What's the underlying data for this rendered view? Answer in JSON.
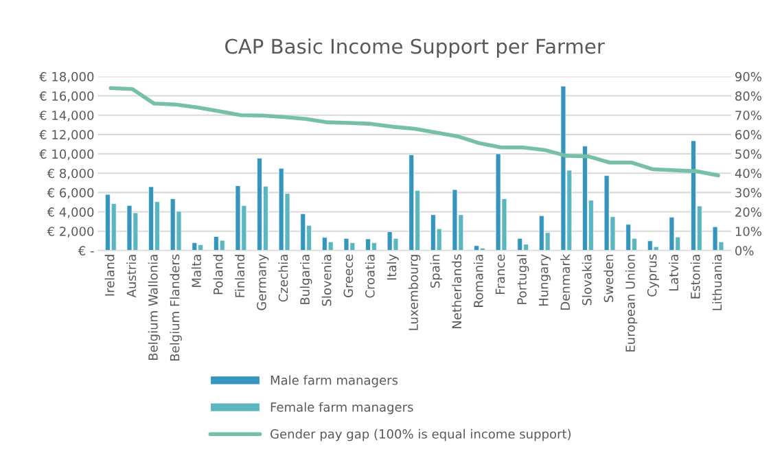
{
  "chart_data": {
    "type": "bar",
    "title": "CAP Basic Income Support per Farmer",
    "categories": [
      "Ireland",
      "Austria",
      "Belgium Wallonia",
      "Belgium Flanders",
      "Malta",
      "Poland",
      "Finland",
      "Germany",
      "Czechia",
      "Bulgaria",
      "Slovenia",
      "Greece",
      "Croatia",
      "Italy",
      "Luxembourg",
      "Spain",
      "Netherlands",
      "Romania",
      "France",
      "Portugal",
      "Hungary",
      "Denmark",
      "Slovakia",
      "Sweden",
      "European Union",
      "Cyprus",
      "Latvia",
      "Estonia",
      "Lithuania"
    ],
    "series": [
      {
        "name": "Male farm managers",
        "color": "#3595bd",
        "values": [
          5800,
          4650,
          6600,
          5350,
          800,
          1450,
          6700,
          9550,
          8500,
          3800,
          1350,
          1250,
          1200,
          1950,
          9900,
          3700,
          6300,
          500,
          10000,
          1250,
          3600,
          17000,
          10800,
          7750,
          2700,
          1000,
          3450,
          11350,
          2450
        ]
      },
      {
        "name": "Female farm managers",
        "color": "#5bb6c0",
        "values": [
          4850,
          3900,
          5050,
          4050,
          600,
          1050,
          4650,
          6650,
          5900,
          2600,
          900,
          800,
          800,
          1250,
          6200,
          2250,
          3700,
          250,
          5350,
          650,
          1850,
          8300,
          5200,
          3500,
          1250,
          400,
          1400,
          4600,
          900
        ]
      },
      {
        "name": "Gender pay gap (100% is equal income support)",
        "type": "line",
        "axis": "y2",
        "color": "#76c0a6",
        "values": [
          84,
          83.5,
          76,
          75.5,
          74,
          72,
          70,
          69.8,
          69,
          68,
          66.3,
          66,
          65.5,
          64,
          63,
          61,
          59,
          55.5,
          53.3,
          53.3,
          52,
          49,
          48.7,
          45.5,
          45.5,
          42,
          41.5,
          41,
          38.8
        ]
      }
    ],
    "ylim": [
      0,
      18000
    ],
    "yticks": [
      {
        "value": 0,
        "label": "€ -"
      },
      {
        "value": 2000,
        "label": "€ 2,000"
      },
      {
        "value": 4000,
        "label": "€ 4,000"
      },
      {
        "value": 6000,
        "label": "€ 6,000"
      },
      {
        "value": 8000,
        "label": "€ 8,000"
      },
      {
        "value": 10000,
        "label": "€ 10,000"
      },
      {
        "value": 12000,
        "label": "€ 12,000"
      },
      {
        "value": 14000,
        "label": "€ 14,000"
      },
      {
        "value": 16000,
        "label": "€ 16,000"
      },
      {
        "value": 18000,
        "label": "€ 18,000"
      }
    ],
    "y2lim": [
      0,
      90
    ],
    "y2ticks": [
      {
        "value": 0,
        "label": "0%"
      },
      {
        "value": 10,
        "label": "10%"
      },
      {
        "value": 20,
        "label": "20%"
      },
      {
        "value": 30,
        "label": "30%"
      },
      {
        "value": 40,
        "label": "40%"
      },
      {
        "value": 50,
        "label": "50%"
      },
      {
        "value": 60,
        "label": "60%"
      },
      {
        "value": 70,
        "label": "70%"
      },
      {
        "value": 80,
        "label": "80%"
      },
      {
        "value": 90,
        "label": "90%"
      }
    ],
    "grid": "y",
    "legend": "bottom"
  }
}
